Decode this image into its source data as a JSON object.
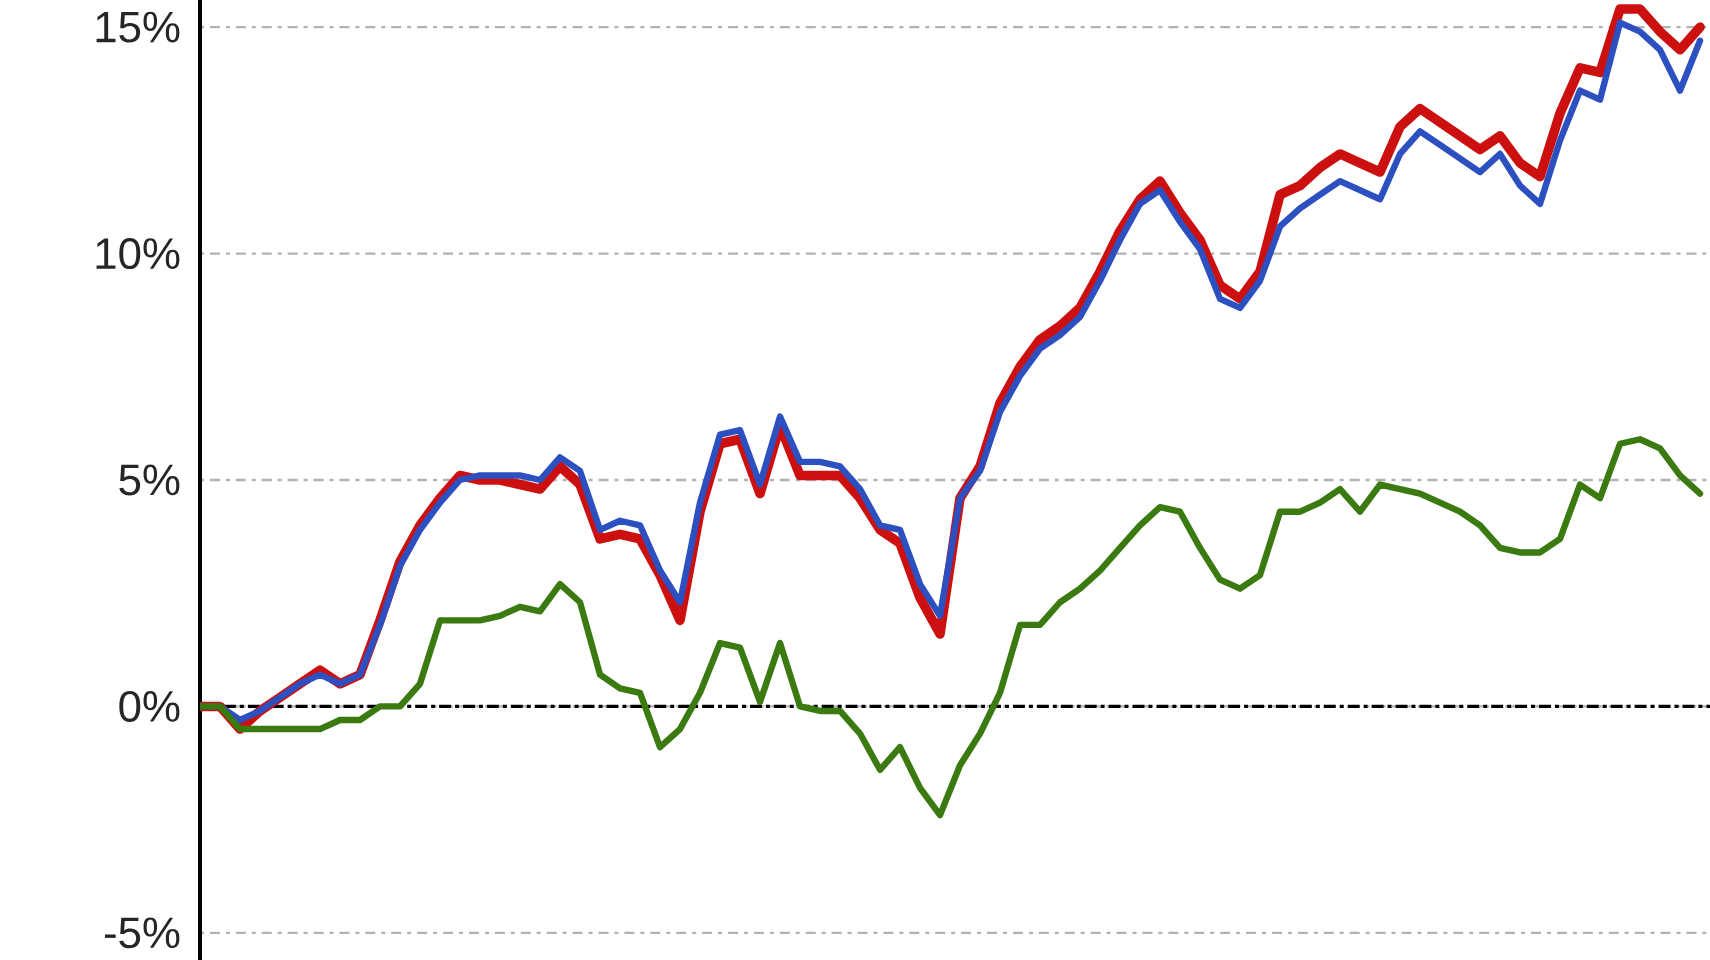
{
  "chart_data": {
    "type": "line",
    "categories": [
      null,
      null,
      null,
      null,
      null,
      null,
      null,
      null,
      null,
      null,
      null,
      null,
      null,
      null,
      null,
      null,
      null,
      null,
      null,
      null,
      null,
      null,
      null,
      null,
      null,
      null,
      null,
      null,
      null,
      null,
      null,
      null,
      null,
      null,
      null,
      null,
      null,
      null,
      null,
      null,
      null,
      null,
      null,
      null,
      null,
      null,
      null,
      null,
      null,
      null,
      null,
      null,
      null,
      null,
      null,
      null,
      null,
      null,
      null,
      null,
      null,
      null,
      null,
      null,
      null,
      null,
      null,
      null,
      null,
      null,
      null,
      null,
      null,
      null,
      null,
      null
    ],
    "ylim": [
      -5.6,
      15.6
    ],
    "yticks": [
      {
        "value": -5,
        "label": "-5%"
      },
      {
        "value": 0,
        "label": "0%"
      },
      {
        "value": 5,
        "label": "5%"
      },
      {
        "value": 10,
        "label": "10%"
      },
      {
        "value": 15,
        "label": "15%"
      }
    ],
    "tick_labels": "y",
    "grid": "y",
    "marker": "none",
    "line_style": "solid",
    "ref_lines": [
      {
        "axis": "y",
        "value": 0,
        "color": "#000000",
        "line_style": "dashed"
      }
    ],
    "series": [
      {
        "color": "#cc1010",
        "values": [
          0,
          0,
          -0.5,
          -0.1,
          0.2,
          0.5,
          0.8,
          0.5,
          0.7,
          1.9,
          3.2,
          4.0,
          4.6,
          5.1,
          5.0,
          5.0,
          4.9,
          4.8,
          5.3,
          4.9,
          3.7,
          3.8,
          3.7,
          2.9,
          1.9,
          4.3,
          5.8,
          5.9,
          4.7,
          6.2,
          5.1,
          5.1,
          5.1,
          4.6,
          3.9,
          3.6,
          2.4,
          1.6,
          4.6,
          5.3,
          6.7,
          7.5,
          8.1,
          8.4,
          8.8,
          9.6,
          10.5,
          11.2,
          11.6,
          10.9,
          10.3,
          9.3,
          9.0,
          9.6,
          11.3,
          11.5,
          11.9,
          12.2,
          12.0,
          11.8,
          12.8,
          13.2,
          12.9,
          12.6,
          12.3,
          12.6,
          12.0,
          11.7,
          13.1,
          14.1,
          14.0,
          15.4,
          15.4,
          14.9,
          14.5,
          15.0
        ]
      },
      {
        "color": "#2d50c0",
        "values": [
          0,
          0,
          -0.3,
          -0.1,
          0.2,
          0.5,
          0.7,
          0.5,
          0.7,
          1.8,
          3.1,
          3.9,
          4.5,
          5.0,
          5.1,
          5.1,
          5.1,
          5.0,
          5.5,
          5.2,
          3.9,
          4.1,
          4.0,
          3.0,
          2.3,
          4.5,
          6.0,
          6.1,
          4.9,
          6.4,
          5.4,
          5.4,
          5.3,
          4.8,
          4.0,
          3.9,
          2.7,
          2.0,
          4.6,
          5.2,
          6.5,
          7.3,
          7.9,
          8.2,
          8.6,
          9.4,
          10.3,
          11.1,
          11.4,
          10.7,
          10.1,
          9.0,
          8.8,
          9.4,
          10.6,
          11.0,
          11.3,
          11.6,
          11.4,
          11.2,
          12.2,
          12.7,
          12.4,
          12.1,
          11.8,
          12.2,
          11.5,
          11.1,
          12.5,
          13.6,
          13.4,
          15.1,
          14.9,
          14.5,
          13.6,
          14.7
        ]
      },
      {
        "color": "#3a7a10",
        "values": [
          0,
          0,
          -0.5,
          -0.5,
          -0.5,
          -0.5,
          -0.5,
          -0.3,
          -0.3,
          0,
          0,
          0.5,
          1.9,
          1.9,
          1.9,
          2.0,
          2.2,
          2.1,
          2.7,
          2.3,
          0.7,
          0.4,
          0.3,
          -0.9,
          -0.5,
          0.3,
          1.4,
          1.3,
          0.1,
          1.4,
          0.0,
          -0.1,
          -0.1,
          -0.6,
          -1.4,
          -0.9,
          -1.8,
          -2.4,
          -1.3,
          -0.6,
          0.3,
          1.8,
          1.8,
          2.3,
          2.6,
          3.0,
          3.5,
          4.0,
          4.4,
          4.3,
          3.5,
          2.8,
          2.6,
          2.9,
          4.3,
          4.3,
          4.5,
          4.8,
          4.3,
          4.9,
          4.8,
          4.7,
          4.5,
          4.3,
          4.0,
          3.5,
          3.4,
          3.4,
          3.7,
          4.9,
          4.6,
          5.8,
          5.9,
          5.7,
          5.1,
          4.7
        ]
      }
    ]
  }
}
